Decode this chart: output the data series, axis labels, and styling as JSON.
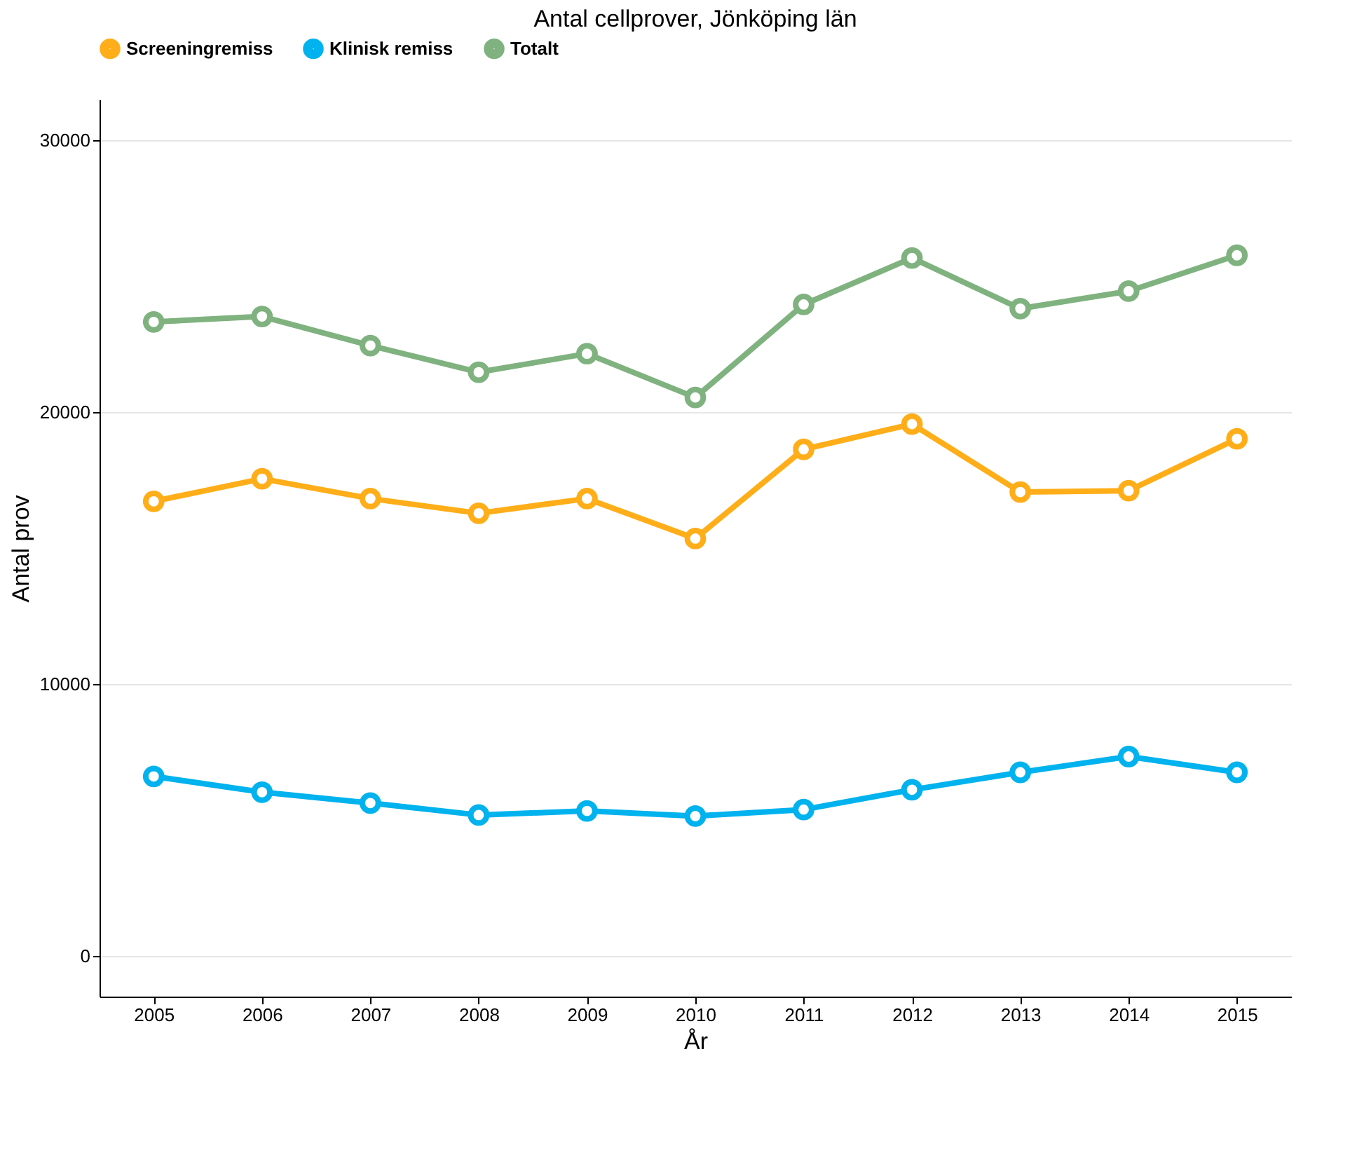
{
  "chart_data": {
    "type": "line",
    "title": "Antal cellprover, Jönköping län",
    "xlabel": "År",
    "ylabel": "Antal prov",
    "categories": [
      "2005",
      "2006",
      "2007",
      "2008",
      "2009",
      "2010",
      "2011",
      "2012",
      "2013",
      "2014",
      "2015"
    ],
    "series": [
      {
        "name": "Screeningremiss",
        "color": "#ffae19",
        "values": [
          16720,
          17550,
          16820,
          16280,
          16820,
          15350,
          18630,
          19560,
          17060,
          17110,
          19020
        ]
      },
      {
        "name": "Klinisk remiss",
        "color": "#00b2ee",
        "values": [
          6600,
          6020,
          5620,
          5180,
          5330,
          5140,
          5380,
          6110,
          6750,
          7330,
          6750
        ]
      },
      {
        "name": "Totalt",
        "color": "#7fb27f",
        "values": [
          23320,
          23520,
          22450,
          21470,
          22150,
          20540,
          23960,
          25670,
          23810,
          24450,
          25770
        ]
      }
    ],
    "ylim": [
      -1500,
      31500
    ],
    "yticks": [
      0,
      10000,
      20000,
      30000
    ],
    "grid": "y",
    "legend": "top",
    "marker": "circle",
    "line_style": "solid"
  }
}
